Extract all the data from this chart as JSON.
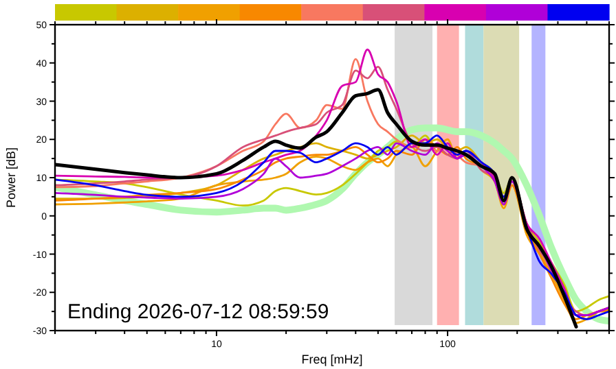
{
  "chart_data": {
    "type": "line",
    "xlabel": "Freq [mHz]",
    "ylabel": "Power [dB]",
    "log": "x",
    "grid": false,
    "line_style": "solid",
    "marker": "none",
    "xlim": [
      2,
      500
    ],
    "ylim": [
      -30,
      50
    ],
    "xticks": [
      {
        "value": 2,
        "label": null
      },
      {
        "value": 3,
        "label": null
      },
      {
        "value": 4,
        "label": null
      },
      {
        "value": 5,
        "label": null
      },
      {
        "value": 6,
        "label": null
      },
      {
        "value": 7,
        "label": null
      },
      {
        "value": 8,
        "label": null
      },
      {
        "value": 9,
        "label": null
      },
      10,
      {
        "value": 20,
        "label": null
      },
      {
        "value": 30,
        "label": null
      },
      {
        "value": 40,
        "label": null
      },
      {
        "value": 50,
        "label": null
      },
      {
        "value": 60,
        "label": null
      },
      {
        "value": 70,
        "label": null
      },
      {
        "value": 80,
        "label": null
      },
      {
        "value": 90,
        "label": null
      },
      100,
      {
        "value": 200,
        "label": null
      },
      {
        "value": 300,
        "label": null
      },
      {
        "value": 400,
        "label": null
      },
      {
        "value": 500,
        "label": null
      }
    ],
    "yticks": [
      -30,
      {
        "value": -25,
        "label": null
      },
      -20,
      {
        "value": -15,
        "label": null
      },
      -10,
      {
        "value": -5,
        "label": null
      },
      0,
      {
        "value": 5,
        "label": null
      },
      10,
      {
        "value": 15,
        "label": null
      },
      20,
      {
        "value": 25,
        "label": null
      },
      30,
      {
        "value": 35,
        "label": null
      },
      40,
      {
        "value": 45,
        "label": null
      },
      50
    ],
    "x": [
      2,
      3,
      4,
      5,
      7,
      10,
      13,
      16,
      18,
      20,
      23,
      27,
      30,
      35,
      40,
      45,
      50,
      55,
      60,
      70,
      80,
      90,
      100,
      110,
      120,
      140,
      160,
      175,
      190,
      220,
      250,
      280,
      320,
      360,
      400,
      450,
      500
    ],
    "bands": [
      {
        "axis": "x",
        "from": 59,
        "to": 86,
        "color": "#d9d9d9"
      },
      {
        "axis": "x",
        "from": 90,
        "to": 112,
        "color": "#ffb0b0"
      },
      {
        "axis": "x",
        "from": 119,
        "to": 143,
        "color": "#b0dcdc"
      },
      {
        "axis": "x",
        "from": 143,
        "to": 204,
        "color": "#dcdcb4"
      },
      {
        "axis": "x",
        "from": 231,
        "to": 265,
        "color": "#b4b4ff"
      }
    ],
    "annotations": [
      "Ending 2026-07-12 08:59:59"
    ],
    "series": [
      {
        "color": "#b0f8b0",
        "values": [
          7.5,
          5.5,
          4,
          3,
          1.5,
          1,
          1.5,
          2,
          2,
          1.5,
          2,
          3,
          4,
          7,
          11,
          14,
          16,
          18,
          20,
          22.5,
          23,
          23,
          22.5,
          22,
          22,
          21,
          19,
          17,
          15,
          8,
          0,
          -8,
          -16,
          -22,
          -25,
          -27,
          -27.5
        ]
      },
      {
        "color": "#c8c800",
        "values": [
          9.5,
          9,
          8.5,
          7.5,
          5.6,
          4,
          2.7,
          4,
          6.5,
          7.3,
          6.5,
          5.6,
          6,
          8,
          11,
          14,
          17,
          18,
          19.5,
          18,
          21,
          17,
          19,
          16,
          17,
          14,
          11,
          6,
          10,
          -2,
          -7,
          -12,
          -18,
          -25,
          -24,
          -22,
          -21
        ]
      },
      {
        "color": "#dcb000",
        "values": [
          4.5,
          4.5,
          4.7,
          5,
          6,
          8,
          12,
          15,
          16,
          17,
          18,
          19,
          18,
          17,
          16,
          15,
          16,
          17,
          18,
          21,
          19,
          20,
          18,
          17,
          18,
          14,
          10,
          3,
          9,
          -4,
          -9,
          -14,
          -20,
          -26,
          -27,
          -25,
          -24
        ]
      },
      {
        "color": "#f0a000",
        "values": [
          3,
          3.2,
          3.5,
          3.8,
          4.5,
          8,
          9,
          9.5,
          10,
          11,
          14,
          15.5,
          15,
          13,
          12,
          14,
          15,
          13,
          16,
          18,
          13,
          17,
          20,
          15,
          17,
          12,
          9,
          2,
          8,
          -5,
          -10,
          -15,
          -22,
          -28,
          -27,
          -25,
          -25
        ]
      },
      {
        "color": "#f88800",
        "values": [
          4,
          4.5,
          5,
          5.5,
          6,
          7,
          9.5,
          12,
          14,
          15,
          15.5,
          16,
          16,
          17,
          18,
          16,
          14,
          15,
          17,
          16,
          20,
          18,
          16,
          18,
          15,
          13,
          9,
          3,
          8,
          -4,
          -10,
          -16,
          -23,
          -27,
          -26,
          -25,
          -24.5
        ]
      },
      {
        "color": "#f87860",
        "values": [
          7.5,
          7.8,
          8.5,
          9,
          10,
          13,
          17,
          19.5,
          24,
          26.7,
          23,
          25,
          29,
          28,
          41,
          30,
          24,
          22,
          20,
          18,
          19,
          17,
          18,
          16,
          14,
          13,
          10,
          5,
          9,
          -3,
          -8,
          -14,
          -20,
          -26,
          -26,
          -25,
          -24
        ]
      },
      {
        "color": "#d85078",
        "values": [
          8,
          8.5,
          9,
          9.5,
          10,
          13,
          18,
          20,
          21,
          22,
          23,
          24,
          27,
          29,
          38,
          36,
          39,
          33,
          28,
          19,
          17,
          18,
          16,
          15,
          17,
          12,
          10,
          4,
          9,
          -2,
          -9,
          -13,
          -21,
          -25,
          -26,
          -25,
          -24
        ]
      },
      {
        "color": "#d800b0",
        "values": [
          10.5,
          10.3,
          10.2,
          10,
          10,
          10.5,
          12,
          14,
          15,
          16,
          17,
          21,
          25,
          34,
          35,
          43.5,
          37,
          35,
          30,
          18,
          20,
          16,
          19,
          15,
          17,
          14,
          10,
          4,
          10,
          -2,
          -6,
          -12,
          -19,
          -26,
          -26,
          -25,
          -24
        ]
      },
      {
        "color": "#b000d8",
        "values": [
          6,
          5.5,
          5,
          4.8,
          4.5,
          5,
          7,
          11,
          15,
          13,
          10,
          10.5,
          11,
          13,
          15,
          17,
          18,
          16,
          19,
          17,
          16,
          19,
          17,
          15,
          16,
          13,
          9,
          3,
          9,
          -3,
          -8,
          -14,
          -20,
          -26,
          -26,
          -25,
          -24
        ]
      },
      {
        "color": "#0000f0",
        "values": [
          9.5,
          8,
          6.5,
          5.5,
          5,
          6,
          9,
          14,
          17,
          17,
          16.5,
          14,
          15,
          17,
          19,
          18,
          16,
          18,
          16,
          19,
          19,
          21,
          18,
          16,
          17,
          14,
          11,
          5,
          10,
          -3,
          -12,
          -15,
          -20,
          -26,
          -27,
          -26,
          -25
        ]
      },
      {
        "color": "#000000",
        "values": [
          13.4,
          12.2,
          11.3,
          10.7,
          10,
          11,
          14.5,
          18,
          19.5,
          18.5,
          17.7,
          20.6,
          22,
          27,
          31.4,
          32,
          33,
          27,
          24,
          19.5,
          18.5,
          18.5,
          17.7,
          17,
          16,
          13,
          11,
          4,
          10,
          -3.4,
          -8,
          -13,
          -21,
          -29,
          null,
          null,
          null
        ]
      }
    ]
  }
}
